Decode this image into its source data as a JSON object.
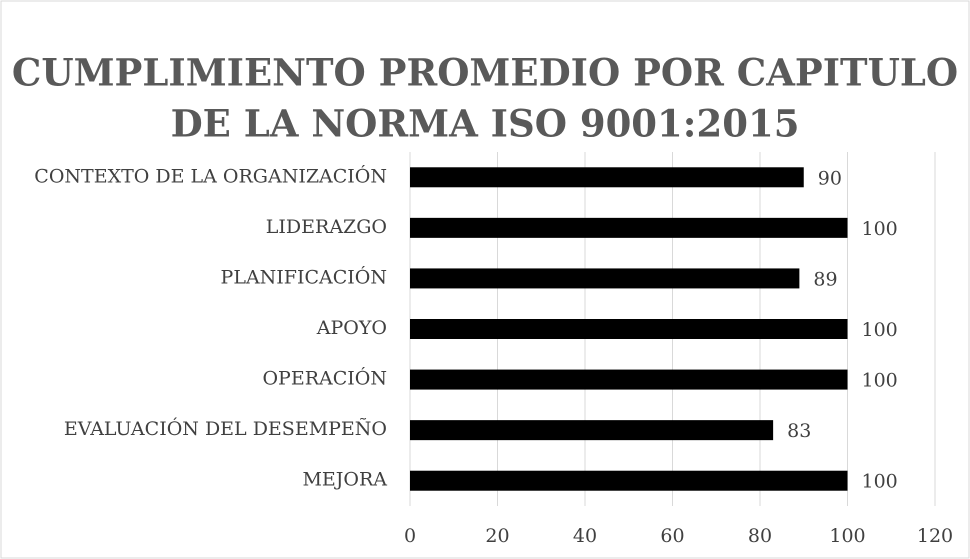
{
  "chart_data": {
    "type": "bar",
    "orientation": "horizontal",
    "title": [
      "CUMPLIMIENTO PROMEDIO POR CAPITULO",
      "DE LA NORMA ISO 9001:2015"
    ],
    "categories": [
      "CONTEXTO DE LA ORGANIZACIÓN",
      "LIDERAZGO",
      "PLANIFICACIÓN",
      "APOYO",
      "OPERACIÓN",
      "EVALUACIÓN DEL DESEMPEÑO",
      "MEJORA"
    ],
    "values": [
      90,
      100,
      89,
      100,
      100,
      83,
      100
    ],
    "color": "#000000",
    "xlim": [
      0,
      120
    ],
    "xticks": [
      0,
      20,
      40,
      60,
      80,
      100,
      120
    ],
    "grid": true,
    "data_labels": true
  }
}
